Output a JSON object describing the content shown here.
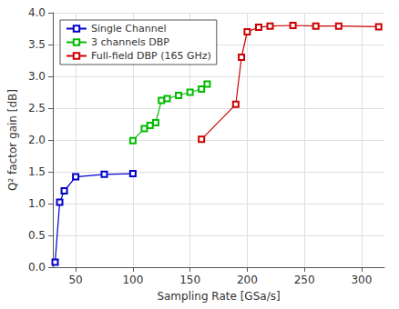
{
  "chart_data": {
    "type": "line",
    "xlabel": "Sampling Rate [GSa/s]",
    "ylabel": "Q² factor gain [dB]",
    "series": [
      {
        "name": "Single Channel",
        "color": "#0000cc",
        "marker": "square",
        "x": [
          32,
          36,
          40,
          50,
          75,
          100
        ],
        "values": [
          0.08,
          1.02,
          1.2,
          1.42,
          1.46,
          1.47
        ]
      },
      {
        "name": "3 channels DBP",
        "color": "#00bb00",
        "marker": "square",
        "x": [
          100,
          110,
          115,
          120,
          125,
          130,
          140,
          150,
          160,
          165
        ],
        "values": [
          1.99,
          2.18,
          2.23,
          2.27,
          2.62,
          2.65,
          2.7,
          2.75,
          2.8,
          2.88
        ]
      },
      {
        "name": "Full-field DBP (165 GHz)",
        "color": "#cc0000",
        "marker": "square",
        "x": [
          160,
          190,
          195,
          200,
          210,
          220,
          240,
          260,
          280,
          315
        ],
        "values": [
          2.01,
          2.56,
          3.3,
          3.7,
          3.77,
          3.79,
          3.8,
          3.79,
          3.79,
          3.78
        ]
      }
    ],
    "xlim": [
      30,
      320
    ],
    "ylim": [
      0,
      4
    ],
    "xticks": [
      50,
      100,
      150,
      200,
      250,
      300
    ],
    "yticks": [
      {
        "value": 0,
        "label": "0.0"
      },
      {
        "value": 0.5,
        "label": "0.5"
      },
      {
        "value": 1,
        "label": "1.0"
      },
      {
        "value": 1.5,
        "label": "1.5"
      },
      {
        "value": 2,
        "label": "2.0"
      },
      {
        "value": 2.5,
        "label": "2.5"
      },
      {
        "value": 3,
        "label": "3.0"
      },
      {
        "value": 3.5,
        "label": "3.5"
      },
      {
        "value": 4,
        "label": "4.0"
      }
    ],
    "grid": true,
    "legend": "upper left"
  }
}
